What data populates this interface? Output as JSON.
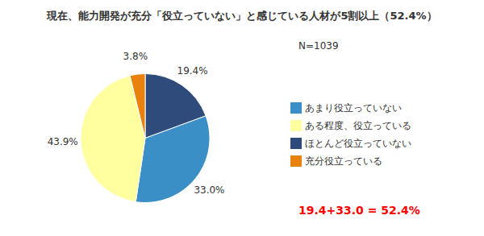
{
  "chart_data": {
    "type": "pie",
    "title": "現在、能力開発が充分「役立っていない」と感じている人材が5割以上（52.4%）",
    "categories": [
      "ほとんど役立っていない",
      "あまり役立っていない",
      "ある程度、役立っている",
      "充分役立っている"
    ],
    "values": [
      19.4,
      33.0,
      43.9,
      3.8
    ],
    "value_labels": [
      "19.4%",
      "33.0%",
      "43.9%",
      "3.8%"
    ],
    "colors": [
      "#2E4B7B",
      "#3A8FC7",
      "#FFFFA0",
      "#E8820C"
    ],
    "data_labels": true,
    "legend": "right",
    "annotations": [
      "N=1039",
      "19.4+33.0 = 52.4%"
    ]
  }
}
